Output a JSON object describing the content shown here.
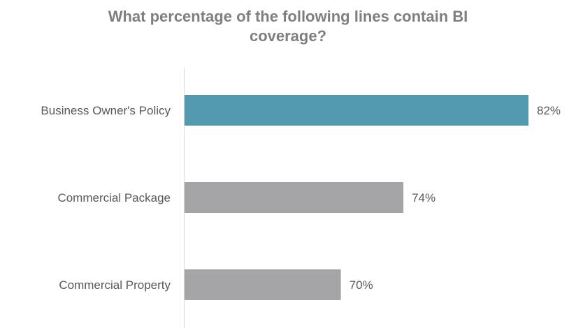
{
  "chart_data": {
    "type": "bar",
    "orientation": "horizontal",
    "title": [
      "What percentage of the following lines contain BI",
      "coverage?"
    ],
    "categories": [
      "Business Owner's Policy",
      "Commercial Package",
      "Commercial Property"
    ],
    "values": [
      82,
      74,
      70
    ],
    "value_labels": [
      "82%",
      "74%",
      "70%"
    ],
    "unit": "%",
    "xlim": [
      60,
      82
    ],
    "grid": false,
    "legend": "none",
    "colors": [
      "#5399b0",
      "#a5a5a8",
      "#a5a5a8"
    ],
    "axis_line_color": "#d9d9d9"
  }
}
